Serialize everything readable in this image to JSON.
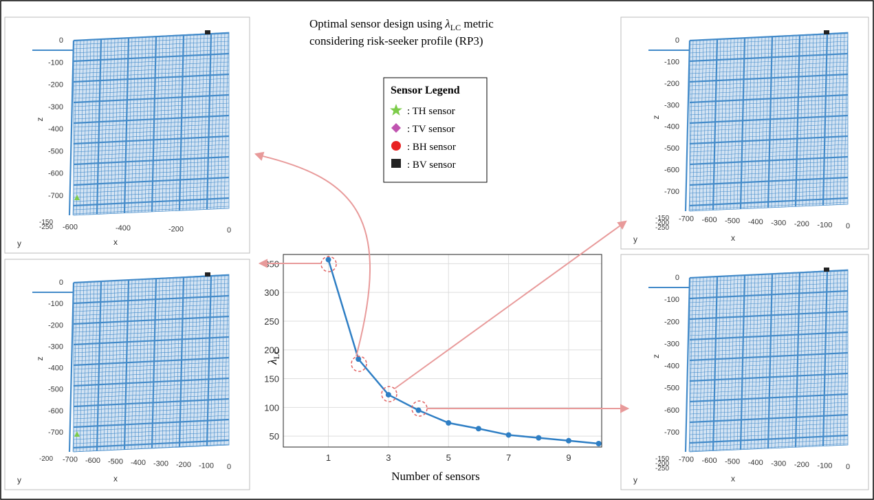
{
  "figure": {
    "title_line1": [
      "Optimal sensor design using ",
      "λ",
      "LC",
      " metric"
    ],
    "title_line2": "considering risk-seeker profile (RP3)",
    "legend": {
      "title": "Sensor Legend",
      "entries": [
        ": TH sensor",
        ": TV sensor",
        ": BH sensor",
        ": BV sensor"
      ]
    },
    "panels": [
      {
        "zticks": [
          0,
          -100,
          -200,
          -300,
          -400,
          -500,
          -600,
          -700
        ],
        "xticks": [
          -600,
          -400,
          -200,
          0
        ],
        "yticks": [
          -150,
          -250
        ],
        "zlabel": "z",
        "xlabel": "x",
        "ylabel": "y"
      },
      {
        "zticks": [
          0,
          -100,
          -200,
          -300,
          -400,
          -500,
          -600,
          -700
        ],
        "xticks": [
          -700,
          -600,
          -500,
          -400,
          -300,
          -200,
          -100,
          0
        ],
        "yticks": [
          -200
        ],
        "zlabel": "z",
        "xlabel": "x",
        "ylabel": "y"
      },
      {
        "zticks": [
          0,
          -100,
          -200,
          -300,
          -400,
          -500,
          -600,
          -700
        ],
        "xticks": [
          -700,
          -600,
          -500,
          -400,
          -300,
          -200,
          -100,
          0
        ],
        "yticks": [
          -150,
          -200,
          -250
        ],
        "zlabel": "z",
        "xlabel": "x",
        "ylabel": "y"
      },
      {
        "zticks": [
          0,
          -100,
          -200,
          -300,
          -400,
          -500,
          -600,
          -700
        ],
        "xticks": [
          -700,
          -600,
          -500,
          -400,
          -300,
          -200,
          -100,
          0
        ],
        "yticks": [
          -150,
          -200,
          -250
        ],
        "zlabel": "z",
        "xlabel": "x",
        "ylabel": "y"
      }
    ]
  },
  "chart_data": {
    "type": "line",
    "x": [
      1,
      2,
      3,
      4,
      5,
      6,
      7,
      8,
      9,
      10
    ],
    "values": [
      357,
      184,
      122,
      95,
      73,
      63,
      52,
      47,
      42,
      37
    ],
    "color": "#2e7ec4",
    "xlabel": "Number of sensors",
    "ylabel": "λ",
    "ylabel_sub": "LC",
    "xlim": [
      -0.5,
      10.1
    ],
    "ylim": [
      31,
      366
    ],
    "xticks": [
      1,
      3,
      5,
      7,
      9
    ],
    "yticks": [
      50,
      100,
      150,
      200,
      250,
      300,
      350
    ],
    "grid": true
  }
}
